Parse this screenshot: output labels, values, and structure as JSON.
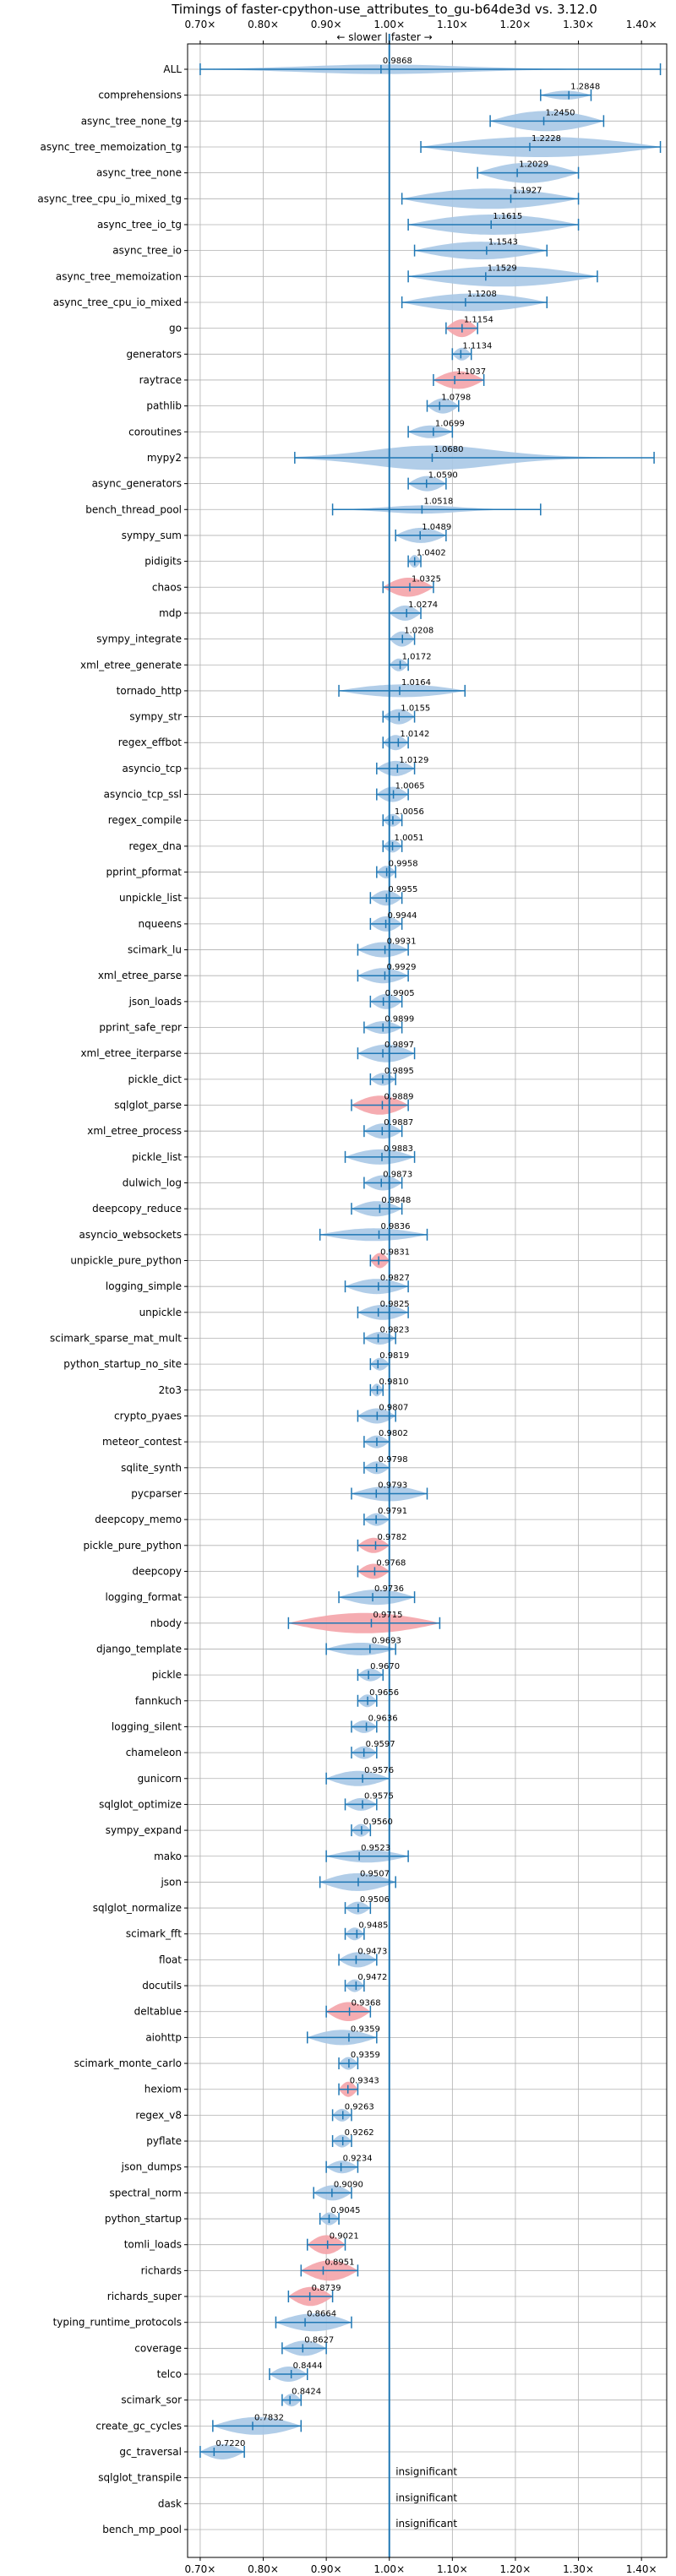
{
  "chart_data": {
    "type": "violin",
    "title": "Timings of faster-cpython-use_attributes_to_gu-b64de3d vs. 3.12.0",
    "direction_label": "← slower | faster →",
    "xlim": [
      0.68,
      1.44
    ],
    "x_ticks": [
      0.7,
      0.8,
      0.9,
      1.0,
      1.1,
      1.2,
      1.3,
      1.4
    ],
    "x_tick_labels": [
      "0.70×",
      "0.80×",
      "0.90×",
      "1.00×",
      "1.10×",
      "1.20×",
      "1.30×",
      "1.40×"
    ],
    "reference_line": 1.0,
    "grid": true,
    "colors": {
      "normal": "#a9c8e6",
      "highlight": "#f4a3a8",
      "line": "#1f77b4"
    },
    "insignificant_label": "insignificant",
    "benchmarks": [
      {
        "name": "ALL",
        "value": 0.9868,
        "label": "0.9868",
        "spread": [
          0.7,
          1.43
        ],
        "width": 0.35,
        "shape": "long"
      },
      {
        "name": "comprehensions",
        "value": 1.2848,
        "label": "1.2848",
        "spread": [
          1.24,
          1.32
        ],
        "width": 0.35
      },
      {
        "name": "async_tree_none_tg",
        "value": 1.245,
        "label": "1.2450",
        "spread": [
          1.16,
          1.34
        ],
        "width": 0.8
      },
      {
        "name": "async_tree_memoization_tg",
        "value": 1.2228,
        "label": "1.2228",
        "spread": [
          1.05,
          1.43
        ],
        "width": 0.8
      },
      {
        "name": "async_tree_none",
        "value": 1.2029,
        "label": "1.2029",
        "spread": [
          1.14,
          1.3
        ],
        "width": 0.8
      },
      {
        "name": "async_tree_cpu_io_mixed_tg",
        "value": 1.1927,
        "label": "1.1927",
        "spread": [
          1.02,
          1.3
        ],
        "width": 0.8
      },
      {
        "name": "async_tree_io_tg",
        "value": 1.1615,
        "label": "1.1615",
        "spread": [
          1.03,
          1.3
        ],
        "width": 0.8
      },
      {
        "name": "async_tree_io",
        "value": 1.1543,
        "label": "1.1543",
        "spread": [
          1.04,
          1.25
        ],
        "width": 0.7
      },
      {
        "name": "async_tree_memoization",
        "value": 1.1529,
        "label": "1.1529",
        "spread": [
          1.03,
          1.33
        ],
        "width": 0.8
      },
      {
        "name": "async_tree_cpu_io_mixed",
        "value": 1.1208,
        "label": "1.1208",
        "spread": [
          1.02,
          1.25
        ],
        "width": 0.7
      },
      {
        "name": "go",
        "value": 1.1154,
        "label": "1.1154",
        "spread": [
          1.09,
          1.14
        ],
        "width": 0.7,
        "highlight": true
      },
      {
        "name": "generators",
        "value": 1.1134,
        "label": "1.1134",
        "spread": [
          1.1,
          1.13
        ],
        "width": 0.5
      },
      {
        "name": "raytrace",
        "value": 1.1037,
        "label": "1.1037",
        "spread": [
          1.07,
          1.15
        ],
        "width": 0.7,
        "highlight": true
      },
      {
        "name": "pathlib",
        "value": 1.0798,
        "label": "1.0798",
        "spread": [
          1.06,
          1.11
        ],
        "width": 0.6
      },
      {
        "name": "coroutines",
        "value": 1.0699,
        "label": "1.0699",
        "spread": [
          1.03,
          1.1
        ],
        "width": 0.5
      },
      {
        "name": "mypy2",
        "value": 1.068,
        "label": "1.0680",
        "spread": [
          0.85,
          1.42
        ],
        "width": 0.9,
        "shape": "long"
      },
      {
        "name": "async_generators",
        "value": 1.059,
        "label": "1.0590",
        "spread": [
          1.03,
          1.09
        ],
        "width": 0.6
      },
      {
        "name": "bench_thread_pool",
        "value": 1.0518,
        "label": "1.0518",
        "spread": [
          0.91,
          1.24
        ],
        "width": 0.3,
        "shape": "long"
      },
      {
        "name": "sympy_sum",
        "value": 1.0489,
        "label": "1.0489",
        "spread": [
          1.01,
          1.09
        ],
        "width": 0.6
      },
      {
        "name": "pidigits",
        "value": 1.0402,
        "label": "1.0402",
        "spread": [
          1.03,
          1.05
        ],
        "width": 0.5
      },
      {
        "name": "chaos",
        "value": 1.0325,
        "label": "1.0325",
        "spread": [
          0.99,
          1.07
        ],
        "width": 0.75,
        "highlight": true
      },
      {
        "name": "mdp",
        "value": 1.0274,
        "label": "1.0274",
        "spread": [
          1.0,
          1.05
        ],
        "width": 0.6
      },
      {
        "name": "sympy_integrate",
        "value": 1.0208,
        "label": "1.0208",
        "spread": [
          1.0,
          1.04
        ],
        "width": 0.6
      },
      {
        "name": "xml_etree_generate",
        "value": 1.0172,
        "label": "1.0172",
        "spread": [
          1.0,
          1.03
        ],
        "width": 0.5
      },
      {
        "name": "tornado_http",
        "value": 1.0164,
        "label": "1.0164",
        "spread": [
          0.92,
          1.12
        ],
        "width": 0.5
      },
      {
        "name": "sympy_str",
        "value": 1.0155,
        "label": "1.0155",
        "spread": [
          0.99,
          1.04
        ],
        "width": 0.6
      },
      {
        "name": "regex_effbot",
        "value": 1.0142,
        "label": "1.0142",
        "spread": [
          0.99,
          1.03
        ],
        "width": 0.6
      },
      {
        "name": "asyncio_tcp",
        "value": 1.0129,
        "label": "1.0129",
        "spread": [
          0.98,
          1.04
        ],
        "width": 0.6
      },
      {
        "name": "asyncio_tcp_ssl",
        "value": 1.0065,
        "label": "1.0065",
        "spread": [
          0.98,
          1.03
        ],
        "width": 0.6
      },
      {
        "name": "regex_compile",
        "value": 1.0056,
        "label": "1.0056",
        "spread": [
          0.99,
          1.02
        ],
        "width": 0.5
      },
      {
        "name": "regex_dna",
        "value": 1.0051,
        "label": "1.0051",
        "spread": [
          0.99,
          1.02
        ],
        "width": 0.5
      },
      {
        "name": "pprint_pformat",
        "value": 0.9958,
        "label": "0.9958",
        "spread": [
          0.98,
          1.01
        ],
        "width": 0.5
      },
      {
        "name": "unpickle_list",
        "value": 0.9955,
        "label": "0.9955",
        "spread": [
          0.97,
          1.02
        ],
        "width": 0.6
      },
      {
        "name": "nqueens",
        "value": 0.9944,
        "label": "0.9944",
        "spread": [
          0.97,
          1.02
        ],
        "width": 0.6
      },
      {
        "name": "scimark_lu",
        "value": 0.9931,
        "label": "0.9931",
        "spread": [
          0.95,
          1.03
        ],
        "width": 0.6
      },
      {
        "name": "xml_etree_parse",
        "value": 0.9929,
        "label": "0.9929",
        "spread": [
          0.95,
          1.03
        ],
        "width": 0.6
      },
      {
        "name": "json_loads",
        "value": 0.9905,
        "label": "0.9905",
        "spread": [
          0.97,
          1.02
        ],
        "width": 0.6
      },
      {
        "name": "pprint_safe_repr",
        "value": 0.9899,
        "label": "0.9899",
        "spread": [
          0.96,
          1.02
        ],
        "width": 0.5
      },
      {
        "name": "xml_etree_iterparse",
        "value": 0.9897,
        "label": "0.9897",
        "spread": [
          0.95,
          1.04
        ],
        "width": 0.7
      },
      {
        "name": "pickle_dict",
        "value": 0.9895,
        "label": "0.9895",
        "spread": [
          0.97,
          1.01
        ],
        "width": 0.5
      },
      {
        "name": "sqlglot_parse",
        "value": 0.9889,
        "label": "0.9889",
        "spread": [
          0.94,
          1.03
        ],
        "width": 0.75,
        "highlight": true
      },
      {
        "name": "xml_etree_process",
        "value": 0.9887,
        "label": "0.9887",
        "spread": [
          0.96,
          1.02
        ],
        "width": 0.6
      },
      {
        "name": "pickle_list",
        "value": 0.9883,
        "label": "0.9883",
        "spread": [
          0.93,
          1.04
        ],
        "width": 0.6
      },
      {
        "name": "dulwich_log",
        "value": 0.9873,
        "label": "0.9873",
        "spread": [
          0.96,
          1.02
        ],
        "width": 0.6
      },
      {
        "name": "deepcopy_reduce",
        "value": 0.9848,
        "label": "0.9848",
        "spread": [
          0.94,
          1.02
        ],
        "width": 0.6
      },
      {
        "name": "asyncio_websockets",
        "value": 0.9836,
        "label": "0.9836",
        "spread": [
          0.89,
          1.06
        ],
        "width": 0.5
      },
      {
        "name": "unpickle_pure_python",
        "value": 0.9831,
        "label": "0.9831",
        "spread": [
          0.97,
          1.0
        ],
        "width": 0.6,
        "highlight": true
      },
      {
        "name": "logging_simple",
        "value": 0.9827,
        "label": "0.9827",
        "spread": [
          0.93,
          1.03
        ],
        "width": 0.6
      },
      {
        "name": "unpickle",
        "value": 0.9825,
        "label": "0.9825",
        "spread": [
          0.95,
          1.03
        ],
        "width": 0.6
      },
      {
        "name": "scimark_sparse_mat_mult",
        "value": 0.9823,
        "label": "0.9823",
        "spread": [
          0.96,
          1.01
        ],
        "width": 0.5
      },
      {
        "name": "python_startup_no_site",
        "value": 0.9819,
        "label": "0.9819",
        "spread": [
          0.97,
          1.0
        ],
        "width": 0.5
      },
      {
        "name": "2to3",
        "value": 0.981,
        "label": "0.9810",
        "spread": [
          0.97,
          0.99
        ],
        "width": 0.5
      },
      {
        "name": "crypto_pyaes",
        "value": 0.9807,
        "label": "0.9807",
        "spread": [
          0.95,
          1.01
        ],
        "width": 0.6
      },
      {
        "name": "meteor_contest",
        "value": 0.9802,
        "label": "0.9802",
        "spread": [
          0.96,
          1.0
        ],
        "width": 0.5
      },
      {
        "name": "sqlite_synth",
        "value": 0.9798,
        "label": "0.9798",
        "spread": [
          0.96,
          1.0
        ],
        "width": 0.5
      },
      {
        "name": "pycparser",
        "value": 0.9793,
        "label": "0.9793",
        "spread": [
          0.94,
          1.06
        ],
        "width": 0.6
      },
      {
        "name": "deepcopy_memo",
        "value": 0.9791,
        "label": "0.9791",
        "spread": [
          0.96,
          1.0
        ],
        "width": 0.5
      },
      {
        "name": "pickle_pure_python",
        "value": 0.9782,
        "label": "0.9782",
        "spread": [
          0.95,
          1.0
        ],
        "width": 0.6,
        "highlight": true
      },
      {
        "name": "deepcopy",
        "value": 0.9768,
        "label": "0.9768",
        "spread": [
          0.95,
          1.0
        ],
        "width": 0.6,
        "highlight": true
      },
      {
        "name": "logging_format",
        "value": 0.9736,
        "label": "0.9736",
        "spread": [
          0.92,
          1.04
        ],
        "width": 0.6
      },
      {
        "name": "nbody",
        "value": 0.9715,
        "label": "0.9715",
        "spread": [
          0.84,
          1.08
        ],
        "width": 0.8,
        "highlight": true
      },
      {
        "name": "django_template",
        "value": 0.9693,
        "label": "0.9693",
        "spread": [
          0.9,
          1.01
        ],
        "width": 0.5
      },
      {
        "name": "pickle",
        "value": 0.967,
        "label": "0.9670",
        "spread": [
          0.95,
          0.99
        ],
        "width": 0.5
      },
      {
        "name": "fannkuch",
        "value": 0.9656,
        "label": "0.9656",
        "spread": [
          0.95,
          0.98
        ],
        "width": 0.5
      },
      {
        "name": "logging_silent",
        "value": 0.9636,
        "label": "0.9636",
        "spread": [
          0.94,
          0.98
        ],
        "width": 0.5
      },
      {
        "name": "chameleon",
        "value": 0.9597,
        "label": "0.9597",
        "spread": [
          0.94,
          0.98
        ],
        "width": 0.5
      },
      {
        "name": "gunicorn",
        "value": 0.9576,
        "label": "0.9576",
        "spread": [
          0.9,
          1.0
        ],
        "width": 0.6
      },
      {
        "name": "sqlglot_optimize",
        "value": 0.9575,
        "label": "0.9575",
        "spread": [
          0.93,
          0.98
        ],
        "width": 0.5
      },
      {
        "name": "sympy_expand",
        "value": 0.956,
        "label": "0.9560",
        "spread": [
          0.94,
          0.97
        ],
        "width": 0.5
      },
      {
        "name": "mako",
        "value": 0.9523,
        "label": "0.9523",
        "spread": [
          0.9,
          1.03
        ],
        "width": 0.5
      },
      {
        "name": "json",
        "value": 0.9507,
        "label": "0.9507",
        "spread": [
          0.89,
          1.01
        ],
        "width": 0.7
      },
      {
        "name": "sqlglot_normalize",
        "value": 0.9506,
        "label": "0.9506",
        "spread": [
          0.93,
          0.97
        ],
        "width": 0.5
      },
      {
        "name": "scimark_fft",
        "value": 0.9485,
        "label": "0.9485",
        "spread": [
          0.93,
          0.96
        ],
        "width": 0.5
      },
      {
        "name": "float",
        "value": 0.9473,
        "label": "0.9473",
        "spread": [
          0.92,
          0.98
        ],
        "width": 0.6
      },
      {
        "name": "docutils",
        "value": 0.9472,
        "label": "0.9472",
        "spread": [
          0.93,
          0.96
        ],
        "width": 0.5
      },
      {
        "name": "deltablue",
        "value": 0.9368,
        "label": "0.9368",
        "spread": [
          0.9,
          0.97
        ],
        "width": 0.75,
        "highlight": true
      },
      {
        "name": "aiohttp",
        "value": 0.9359,
        "label": "0.9359",
        "spread": [
          0.87,
          0.98
        ],
        "width": 0.6
      },
      {
        "name": "scimark_monte_carlo",
        "value": 0.9359,
        "label": "0.9359",
        "spread": [
          0.92,
          0.95
        ],
        "width": 0.5
      },
      {
        "name": "hexiom",
        "value": 0.9343,
        "label": "0.9343",
        "spread": [
          0.92,
          0.95
        ],
        "width": 0.6,
        "highlight": true
      },
      {
        "name": "regex_v8",
        "value": 0.9263,
        "label": "0.9263",
        "spread": [
          0.91,
          0.94
        ],
        "width": 0.5
      },
      {
        "name": "pyflate",
        "value": 0.9262,
        "label": "0.9262",
        "spread": [
          0.91,
          0.94
        ],
        "width": 0.5
      },
      {
        "name": "json_dumps",
        "value": 0.9234,
        "label": "0.9234",
        "spread": [
          0.9,
          0.95
        ],
        "width": 0.5
      },
      {
        "name": "spectral_norm",
        "value": 0.909,
        "label": "0.9090",
        "spread": [
          0.88,
          0.94
        ],
        "width": 0.6
      },
      {
        "name": "python_startup",
        "value": 0.9045,
        "label": "0.9045",
        "spread": [
          0.89,
          0.92
        ],
        "width": 0.5
      },
      {
        "name": "tomli_loads",
        "value": 0.9021,
        "label": "0.9021",
        "spread": [
          0.87,
          0.93
        ],
        "width": 0.75,
        "highlight": true
      },
      {
        "name": "richards",
        "value": 0.8951,
        "label": "0.8951",
        "spread": [
          0.86,
          0.95
        ],
        "width": 0.8,
        "highlight": true
      },
      {
        "name": "richards_super",
        "value": 0.8739,
        "label": "0.8739",
        "spread": [
          0.84,
          0.91
        ],
        "width": 0.75,
        "highlight": true
      },
      {
        "name": "typing_runtime_protocols",
        "value": 0.8664,
        "label": "0.8664",
        "spread": [
          0.82,
          0.94
        ],
        "width": 0.7
      },
      {
        "name": "coverage",
        "value": 0.8627,
        "label": "0.8627",
        "spread": [
          0.83,
          0.9
        ],
        "width": 0.6
      },
      {
        "name": "telco",
        "value": 0.8444,
        "label": "0.8444",
        "spread": [
          0.81,
          0.87
        ],
        "width": 0.6
      },
      {
        "name": "scimark_sor",
        "value": 0.8424,
        "label": "0.8424",
        "spread": [
          0.83,
          0.86
        ],
        "width": 0.5
      },
      {
        "name": "create_gc_cycles",
        "value": 0.7832,
        "label": "0.7832",
        "spread": [
          0.72,
          0.86
        ],
        "width": 0.7
      },
      {
        "name": "gc_traversal",
        "value": 0.722,
        "label": "0.7220",
        "spread": [
          0.7,
          0.77
        ],
        "width": 0.6
      },
      {
        "name": "sqlglot_transpile",
        "insignificant": true
      },
      {
        "name": "dask",
        "insignificant": true
      },
      {
        "name": "bench_mp_pool",
        "insignificant": true
      }
    ]
  }
}
